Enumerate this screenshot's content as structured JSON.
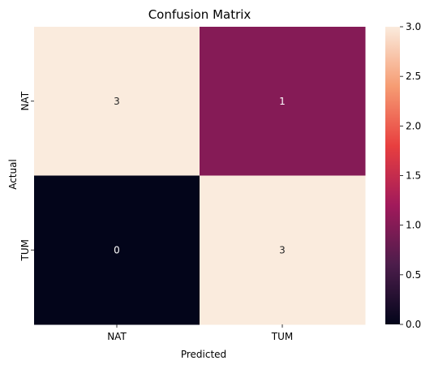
{
  "chart_data": {
    "type": "heatmap",
    "title": "Confusion Matrix",
    "xlabel": "Predicted",
    "ylabel": "Actual",
    "x_categories": [
      "NAT",
      "TUM"
    ],
    "y_categories": [
      "NAT",
      "TUM"
    ],
    "values": [
      [
        3,
        1
      ],
      [
        0,
        3
      ]
    ],
    "annotations": [
      [
        "3",
        "1"
      ],
      [
        "0",
        "3"
      ]
    ],
    "colorbar": {
      "range": [
        0.0,
        3.0
      ],
      "ticks": [
        0.0,
        0.5,
        1.0,
        1.5,
        2.0,
        2.5,
        3.0
      ],
      "tick_labels": [
        "0.0",
        "0.5",
        "1.0",
        "1.5",
        "2.0",
        "2.5",
        "3.0"
      ],
      "colormap": "rocket",
      "colormap_stops": [
        "#03051a",
        "#4c1d4b",
        "#a11a5b",
        "#e83f3f",
        "#f69c73",
        "#faebdd"
      ]
    },
    "annotation_colors": {
      "on_dark": "#ffffff",
      "on_light": "#262626"
    }
  }
}
